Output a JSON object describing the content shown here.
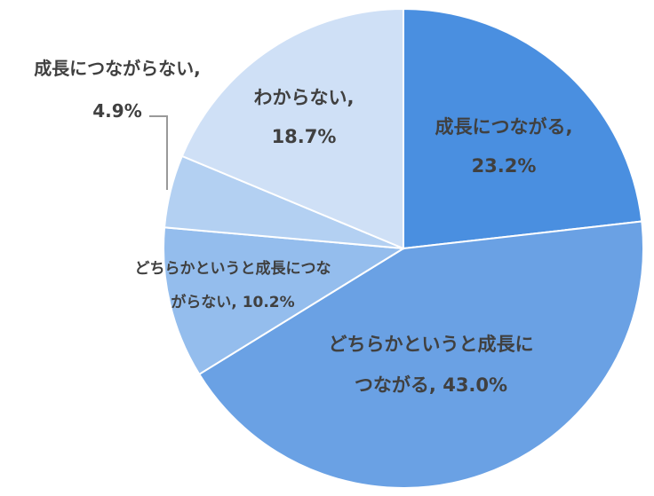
{
  "chart_data": {
    "type": "pie",
    "title": "",
    "start": "12 o'clock",
    "direction": "clockwise",
    "slices": [
      {
        "label": "成長につながる",
        "value": 23.2,
        "color": "#4a8fe0",
        "label_lines": [
          "成長につながる,",
          "23.2%"
        ]
      },
      {
        "label": "どちらかというと成長につながる",
        "value": 43.0,
        "color": "#6aa1e4",
        "label_lines": [
          "どちらかというと成長に",
          "つながる, 43.0%"
        ]
      },
      {
        "label": "どちらかというと成長につながらない",
        "value": 10.2,
        "color": "#94bded",
        "label_lines": [
          "どちらかというと成長につな",
          "がらない, 10.2%"
        ]
      },
      {
        "label": "成長につながらない",
        "value": 4.9,
        "color": "#b3d0f2",
        "label_lines": [
          "成長につながらない,",
          "4.9%"
        ]
      },
      {
        "label": "わからない",
        "value": 18.7,
        "color": "#cfe0f6",
        "label_lines": [
          "わからない,",
          "18.7%"
        ]
      }
    ],
    "legend": "none"
  }
}
